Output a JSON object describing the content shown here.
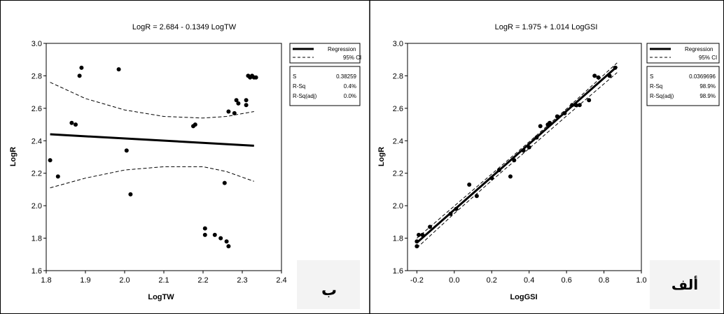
{
  "panels": [
    {
      "panel_label": "ب",
      "legend": {
        "regression": "Regression",
        "ci": "95% CI"
      },
      "stats": [
        {
          "label": "S",
          "value": "0.38259"
        },
        {
          "label": "R-Sq",
          "value": "0.4%"
        },
        {
          "label": "R-Sq(adj)",
          "value": "0.0%"
        }
      ]
    },
    {
      "panel_label": "ألف",
      "legend": {
        "regression": "Regression",
        "ci": "95% CI"
      },
      "stats": [
        {
          "label": "S",
          "value": "0.0369696"
        },
        {
          "label": "R-Sq",
          "value": "98.9%"
        },
        {
          "label": "R-Sq(adj)",
          "value": "98.9%"
        }
      ]
    }
  ],
  "chart_data": [
    {
      "type": "scatter",
      "title": "LogR = 2.684 - 0.1349 LogTW",
      "xlabel": "LogTW",
      "ylabel": "LogR",
      "xlim": [
        1.8,
        2.4
      ],
      "ylim": [
        1.6,
        3.0
      ],
      "xticks": [
        "1.8",
        "1.9",
        "2.0",
        "2.1",
        "2.2",
        "2.3",
        "2.4"
      ],
      "yticks": [
        "1.6",
        "1.8",
        "2.0",
        "2.2",
        "2.4",
        "2.6",
        "2.8",
        "3.0"
      ],
      "regression": {
        "intercept": 2.684,
        "slope": -0.1349,
        "x_range": [
          1.81,
          2.33
        ]
      },
      "ci_band": {
        "x": [
          1.81,
          1.9,
          2.0,
          2.1,
          2.2,
          2.26,
          2.33
        ],
        "upper": [
          2.76,
          2.66,
          2.59,
          2.55,
          2.54,
          2.55,
          2.58
        ],
        "lower": [
          2.11,
          2.17,
          2.22,
          2.24,
          2.24,
          2.21,
          2.15
        ]
      },
      "points": [
        {
          "x": 1.81,
          "y": 2.28
        },
        {
          "x": 1.83,
          "y": 2.18
        },
        {
          "x": 1.865,
          "y": 2.51
        },
        {
          "x": 1.875,
          "y": 2.5
        },
        {
          "x": 1.885,
          "y": 2.8
        },
        {
          "x": 1.89,
          "y": 2.85
        },
        {
          "x": 1.985,
          "y": 2.84
        },
        {
          "x": 2.005,
          "y": 2.34
        },
        {
          "x": 2.015,
          "y": 2.07
        },
        {
          "x": 2.175,
          "y": 2.49
        },
        {
          "x": 2.18,
          "y": 2.5
        },
        {
          "x": 2.205,
          "y": 1.86
        },
        {
          "x": 2.205,
          "y": 1.82
        },
        {
          "x": 2.23,
          "y": 1.82
        },
        {
          "x": 2.245,
          "y": 1.8
        },
        {
          "x": 2.255,
          "y": 2.14
        },
        {
          "x": 2.26,
          "y": 1.78
        },
        {
          "x": 2.265,
          "y": 1.75
        },
        {
          "x": 2.265,
          "y": 2.58
        },
        {
          "x": 2.28,
          "y": 2.57
        },
        {
          "x": 2.285,
          "y": 2.65
        },
        {
          "x": 2.29,
          "y": 2.63
        },
        {
          "x": 2.31,
          "y": 2.62
        },
        {
          "x": 2.31,
          "y": 2.65
        },
        {
          "x": 2.315,
          "y": 2.8
        },
        {
          "x": 2.32,
          "y": 2.79
        },
        {
          "x": 2.325,
          "y": 2.8
        },
        {
          "x": 2.33,
          "y": 2.79
        },
        {
          "x": 2.335,
          "y": 2.79
        }
      ]
    },
    {
      "type": "scatter",
      "title": "LogR = 1.975 + 1.014 LogGSI",
      "xlabel": "LogGSI",
      "ylabel": "LogR",
      "xlim": [
        -0.25,
        1.0
      ],
      "ylim": [
        1.6,
        3.0
      ],
      "xticks": [
        "-0.2",
        "0.0",
        "0.2",
        "0.4",
        "0.6",
        "0.8",
        "1.0"
      ],
      "yticks": [
        "1.6",
        "1.8",
        "2.0",
        "2.2",
        "2.4",
        "2.6",
        "2.8",
        "3.0"
      ],
      "regression": {
        "intercept": 1.975,
        "slope": 1.014,
        "x_range": [
          -0.2,
          0.87
        ]
      },
      "ci_band": {
        "x": [
          -0.2,
          0.0,
          0.2,
          0.4,
          0.6,
          0.87
        ],
        "upper": [
          1.8,
          1.998,
          2.195,
          2.393,
          2.597,
          2.88
        ],
        "lower": [
          1.74,
          1.952,
          2.155,
          2.353,
          2.553,
          2.82
        ]
      },
      "points": [
        {
          "x": -0.2,
          "y": 1.75
        },
        {
          "x": -0.2,
          "y": 1.78
        },
        {
          "x": -0.19,
          "y": 1.82
        },
        {
          "x": -0.17,
          "y": 1.82
        },
        {
          "x": -0.13,
          "y": 1.87
        },
        {
          "x": -0.02,
          "y": 1.95
        },
        {
          "x": 0.01,
          "y": 1.98
        },
        {
          "x": 0.08,
          "y": 2.13
        },
        {
          "x": 0.12,
          "y": 2.06
        },
        {
          "x": 0.2,
          "y": 2.17
        },
        {
          "x": 0.24,
          "y": 2.22
        },
        {
          "x": 0.3,
          "y": 2.18
        },
        {
          "x": 0.32,
          "y": 2.28
        },
        {
          "x": 0.37,
          "y": 2.34
        },
        {
          "x": 0.4,
          "y": 2.36
        },
        {
          "x": 0.44,
          "y": 2.42
        },
        {
          "x": 0.46,
          "y": 2.49
        },
        {
          "x": 0.5,
          "y": 2.5
        },
        {
          "x": 0.51,
          "y": 2.51
        },
        {
          "x": 0.55,
          "y": 2.55
        },
        {
          "x": 0.59,
          "y": 2.57
        },
        {
          "x": 0.63,
          "y": 2.62
        },
        {
          "x": 0.65,
          "y": 2.62
        },
        {
          "x": 0.67,
          "y": 2.62
        },
        {
          "x": 0.72,
          "y": 2.65
        },
        {
          "x": 0.75,
          "y": 2.8
        },
        {
          "x": 0.77,
          "y": 2.79
        },
        {
          "x": 0.83,
          "y": 2.8
        },
        {
          "x": 0.86,
          "y": 2.85
        }
      ]
    }
  ]
}
